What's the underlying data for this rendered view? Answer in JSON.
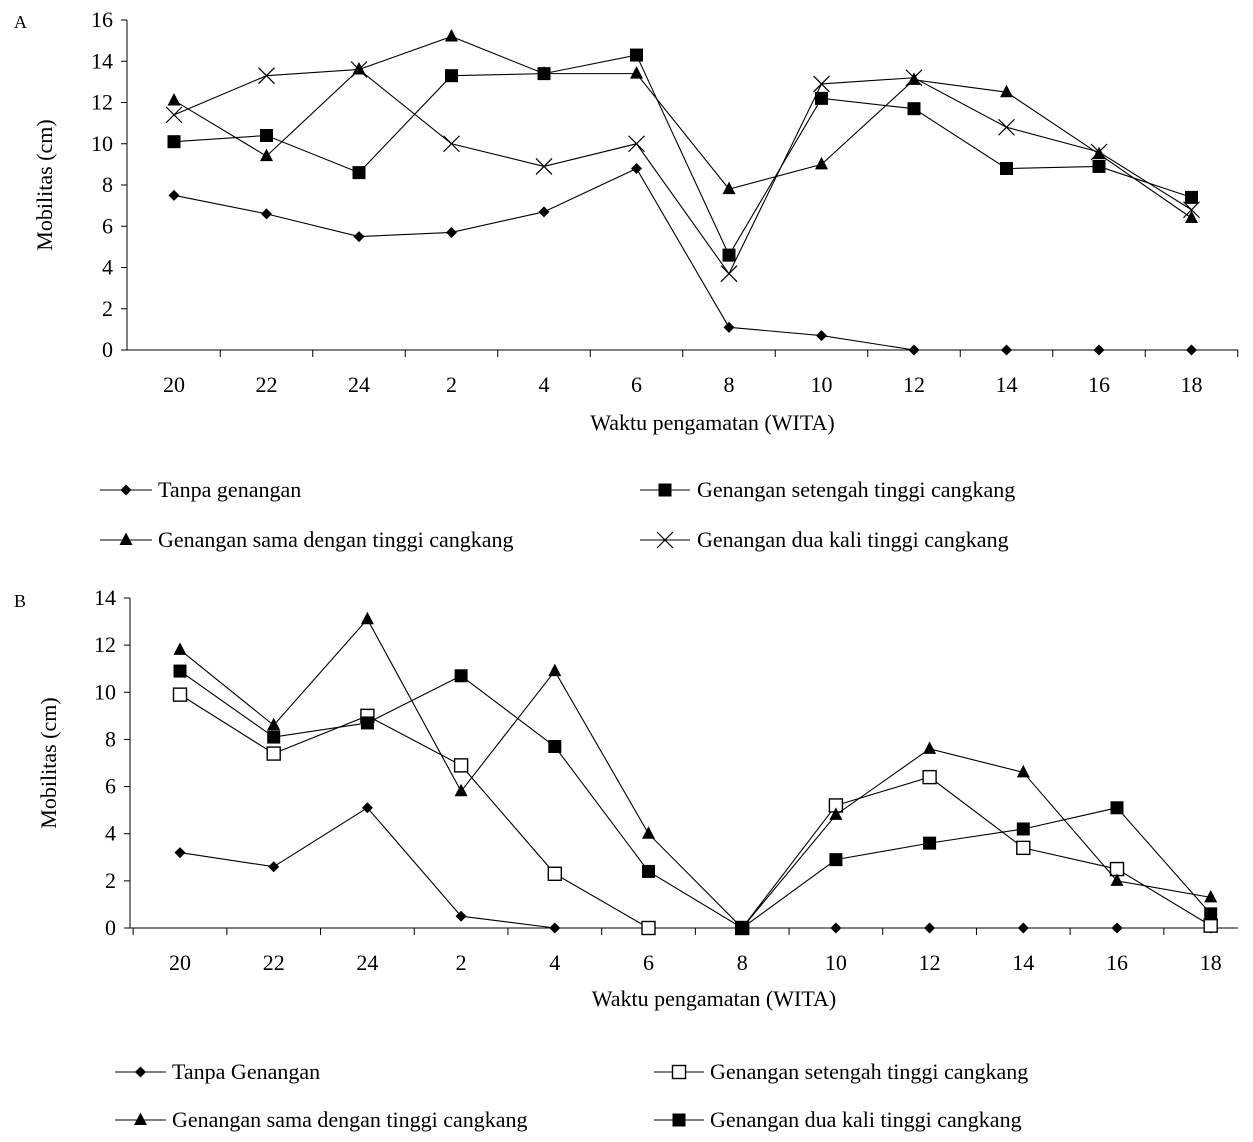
{
  "chart_data": [
    {
      "type": "line",
      "panel_label": "A",
      "xlabel": "Waktu pengamatan (WITA)",
      "ylabel": "Mobilitas  (cm)",
      "categories": [
        "20",
        "22",
        "24",
        "2",
        "4",
        "6",
        "8",
        "10",
        "12",
        "14",
        "16",
        "18"
      ],
      "ylim": [
        0,
        16
      ],
      "yticks": [
        "0",
        "2",
        "4",
        "6",
        "8",
        "10",
        "12",
        "14",
        "16"
      ],
      "grid": false,
      "legend_position": "bottom",
      "series": [
        {
          "name": "Tanpa genangan",
          "marker": "diamond",
          "values": [
            7.5,
            6.6,
            5.5,
            5.7,
            6.7,
            8.8,
            1.1,
            0.7,
            0,
            0,
            0,
            0
          ]
        },
        {
          "name": "Genangan setengah tinggi cangkang",
          "marker": "square",
          "values": [
            10.1,
            10.4,
            8.6,
            13.3,
            13.4,
            14.3,
            4.6,
            12.2,
            11.7,
            8.8,
            8.9,
            7.4
          ]
        },
        {
          "name": "Genangan sama dengan tinggi cangkang",
          "marker": "triangle",
          "values": [
            12.1,
            9.4,
            13.6,
            15.2,
            13.4,
            13.4,
            7.8,
            9.0,
            13.1,
            12.5,
            9.5,
            6.4
          ]
        },
        {
          "name": "Genangan dua kali tinggi cangkang",
          "marker": "x",
          "values": [
            11.4,
            13.3,
            13.6,
            10.0,
            8.9,
            10.0,
            3.7,
            12.9,
            13.2,
            10.8,
            9.6,
            6.8
          ]
        }
      ]
    },
    {
      "type": "line",
      "panel_label": "B",
      "xlabel": "Waktu pengamatan (WITA)",
      "ylabel": "Mobilitas  (cm)",
      "categories": [
        "20",
        "22",
        "24",
        "2",
        "4",
        "6",
        "8",
        "10",
        "12",
        "14",
        "16",
        "18"
      ],
      "ylim": [
        0,
        14
      ],
      "yticks": [
        "0",
        "2",
        "4",
        "6",
        "8",
        "10",
        "12",
        "14"
      ],
      "grid": false,
      "legend_position": "bottom",
      "series": [
        {
          "name": "Tanpa Genangan",
          "marker": "diamond",
          "values": [
            3.2,
            2.6,
            5.1,
            0.5,
            0,
            0,
            0,
            0,
            0,
            0,
            0,
            0
          ]
        },
        {
          "name": "Genangan setengah tinggi cangkang",
          "marker": "open-square",
          "values": [
            9.9,
            7.4,
            9.0,
            6.9,
            2.3,
            0,
            0,
            5.2,
            6.4,
            3.4,
            2.5,
            0.1
          ]
        },
        {
          "name": "Genangan sama dengan tinggi cangkang",
          "marker": "triangle",
          "values": [
            11.8,
            8.6,
            13.1,
            5.8,
            10.9,
            4.0,
            0,
            4.8,
            7.6,
            6.6,
            2.0,
            1.3
          ]
        },
        {
          "name": "Genangan dua kali tinggi cangkang",
          "marker": "square",
          "values": [
            10.9,
            8.1,
            8.7,
            10.7,
            7.7,
            2.4,
            0,
            2.9,
            3.6,
            4.2,
            5.1,
            0.6
          ]
        }
      ]
    }
  ]
}
